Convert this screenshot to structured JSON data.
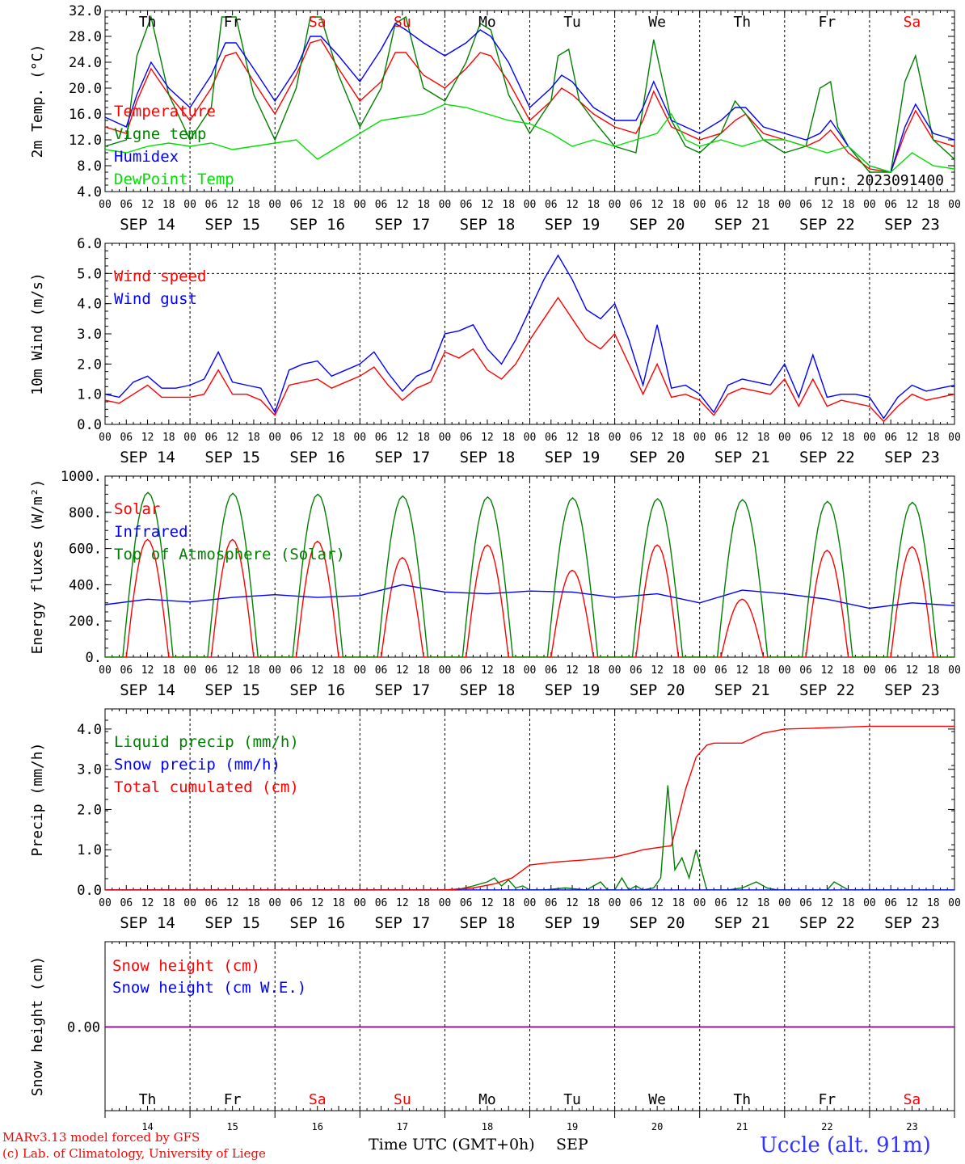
{
  "days": [
    "14",
    "15",
    "16",
    "17",
    "18",
    "19",
    "20",
    "21",
    "22",
    "23"
  ],
  "weekdays": [
    {
      "label": "Th",
      "color": "#000000"
    },
    {
      "label": "Fr",
      "color": "#000000"
    },
    {
      "label": "Sa",
      "color": "#ff0000"
    },
    {
      "label": "Su",
      "color": "#ff0000"
    },
    {
      "label": "Mo",
      "color": "#000000"
    },
    {
      "label": "Tu",
      "color": "#000000"
    },
    {
      "label": "We",
      "color": "#000000"
    },
    {
      "label": "Th",
      "color": "#000000"
    },
    {
      "label": "Fr",
      "color": "#000000"
    },
    {
      "label": "Sa",
      "color": "#ff0000"
    }
  ],
  "hour_ticks": [
    "00",
    "06",
    "12",
    "18"
  ],
  "date_labels": [
    "SEP 14",
    "SEP 15",
    "SEP 16",
    "SEP 17",
    "SEP 18",
    "SEP 19",
    "SEP 20",
    "SEP 21",
    "SEP 22",
    "SEP 23"
  ],
  "footer": {
    "model": "MARv3.13 model forced by GFS",
    "lab": "(c) Lab. of Climatology, University of Liege",
    "xlabel": "Time UTC (GMT+0h)",
    "month": "SEP",
    "station": "Uccle (alt. 91m)"
  },
  "colors": {
    "red": "#ff0000",
    "green": "#008000",
    "blue": "#0000ff",
    "lime": "#00e000",
    "purple": "#800080",
    "station": "#3333ff"
  },
  "chart_data": [
    {
      "type": "line",
      "ylabel": "2m Temp. (°C)",
      "ylim": [
        4,
        32
      ],
      "yticks": [
        "4.0",
        "8.0",
        "12.0",
        "16.0",
        "20.0",
        "24.0",
        "28.0",
        "32.0"
      ],
      "weekday_labels_top": true,
      "annotation": "run: 2023091400",
      "x_unit": "hours since SEP 14 00 UTC",
      "series": [
        {
          "name": "Temperature",
          "color": "#ff0000",
          "x": [
            0,
            6,
            9,
            13,
            18,
            24,
            30,
            34,
            37,
            42,
            48,
            54,
            58,
            61,
            66,
            72,
            78,
            82,
            85,
            90,
            96,
            102,
            106,
            109,
            114,
            120,
            126,
            129,
            132,
            138,
            144,
            150,
            152,
            155,
            160,
            164,
            168,
            174,
            178,
            181,
            186,
            192,
            198,
            202,
            205,
            210,
            216,
            222,
            226,
            229,
            234,
            240
          ],
          "y": [
            14,
            13,
            18,
            23,
            19,
            15,
            20,
            25,
            25.5,
            21,
            16,
            22,
            27,
            27.5,
            23,
            18,
            21,
            25.5,
            25.5,
            22,
            20,
            23,
            25.5,
            25,
            21,
            15,
            18,
            20,
            19,
            16,
            14,
            13,
            15,
            19.5,
            14,
            13,
            12,
            13,
            15,
            16,
            13,
            12,
            11,
            12,
            13.5,
            10,
            7.5,
            7,
            13,
            16.5,
            12,
            11
          ]
        },
        {
          "name": "Vigne temp",
          "color": "#008000",
          "x": [
            0,
            6,
            9,
            13,
            18,
            24,
            30,
            33,
            37,
            42,
            48,
            54,
            58,
            61,
            66,
            72,
            78,
            82,
            85,
            90,
            96,
            102,
            106,
            109,
            114,
            120,
            126,
            128,
            131,
            134,
            138,
            144,
            150,
            152,
            155,
            160,
            164,
            168,
            174,
            178,
            181,
            186,
            192,
            198,
            202,
            205,
            207,
            210,
            216,
            222,
            226,
            229,
            234,
            240
          ],
          "y": [
            11,
            12,
            25,
            31,
            19,
            12,
            17,
            31,
            31,
            19,
            12,
            20,
            31,
            31,
            22,
            14,
            20,
            30,
            31,
            20,
            18,
            24,
            30,
            29,
            19,
            13,
            18,
            25,
            26,
            18,
            15,
            11,
            10,
            17,
            27.5,
            15,
            11,
            10,
            13,
            18,
            16,
            12,
            10,
            11,
            20,
            21,
            14,
            11,
            7,
            7,
            21,
            25,
            12,
            9
          ]
        },
        {
          "name": "Humidex",
          "color": "#0000ff",
          "x": [
            0,
            6,
            9,
            13,
            18,
            24,
            30,
            34,
            37,
            42,
            48,
            54,
            58,
            61,
            66,
            72,
            78,
            82,
            85,
            90,
            96,
            102,
            106,
            109,
            114,
            120,
            126,
            129,
            132,
            138,
            144,
            150,
            152,
            155,
            160,
            164,
            168,
            174,
            178,
            181,
            186,
            192,
            198,
            202,
            205,
            210,
            216,
            222,
            226,
            229,
            234,
            240
          ],
          "y": [
            15.5,
            14,
            19,
            24,
            20,
            17,
            22,
            27,
            27,
            23,
            18,
            23,
            28,
            28,
            25,
            21,
            26,
            30,
            29,
            27,
            25,
            27,
            29,
            28,
            24,
            17,
            20,
            22,
            21,
            17,
            15,
            15,
            17,
            21,
            15,
            14,
            13,
            15,
            17,
            17,
            14,
            13,
            12,
            13,
            15,
            11,
            8,
            7,
            14,
            17.5,
            13,
            12
          ]
        },
        {
          "name": "DewPoint Temp",
          "color": "#00e000",
          "x": [
            0,
            6,
            12,
            18,
            24,
            30,
            36,
            42,
            48,
            54,
            60,
            66,
            72,
            78,
            84,
            90,
            96,
            102,
            108,
            114,
            120,
            126,
            132,
            138,
            144,
            150,
            156,
            160,
            164,
            168,
            174,
            180,
            186,
            192,
            198,
            204,
            210,
            216,
            222,
            228,
            234,
            240
          ],
          "y": [
            10.5,
            10,
            11,
            11.5,
            11,
            11.5,
            10.5,
            11,
            11.5,
            12,
            9,
            11,
            13,
            15,
            15.5,
            16,
            17.5,
            17,
            16,
            15,
            14.5,
            13,
            11,
            12,
            11,
            12,
            13,
            16,
            12,
            11,
            12,
            11,
            12,
            12,
            11,
            10,
            11,
            8,
            7,
            10,
            8,
            7.5
          ]
        }
      ]
    },
    {
      "type": "line",
      "ylabel": "10m Wind (m/s)",
      "ylim": [
        0,
        6
      ],
      "yticks": [
        "0.0",
        "1.0",
        "2.0",
        "3.0",
        "4.0",
        "5.0",
        "6.0"
      ],
      "reference_line": 5.0,
      "x_unit": "hours since SEP 14 00 UTC",
      "series": [
        {
          "name": "Wind speed",
          "color": "#ff0000",
          "x": [
            0,
            4,
            8,
            12,
            16,
            20,
            24,
            28,
            32,
            36,
            40,
            44,
            48,
            52,
            56,
            60,
            64,
            68,
            72,
            76,
            80,
            84,
            88,
            92,
            96,
            100,
            104,
            108,
            112,
            116,
            120,
            124,
            128,
            132,
            136,
            140,
            144,
            148,
            152,
            156,
            160,
            164,
            168,
            172,
            176,
            180,
            184,
            188,
            192,
            196,
            200,
            204,
            208,
            212,
            216,
            220,
            224,
            228,
            232,
            236,
            240
          ],
          "y": [
            0.8,
            0.7,
            1.0,
            1.3,
            0.9,
            0.9,
            0.9,
            1.0,
            1.8,
            1.0,
            1.0,
            0.8,
            0.3,
            1.3,
            1.4,
            1.5,
            1.2,
            1.4,
            1.6,
            1.9,
            1.3,
            0.8,
            1.2,
            1.4,
            2.4,
            2.2,
            2.5,
            1.8,
            1.5,
            2.0,
            2.8,
            3.5,
            4.2,
            3.5,
            2.8,
            2.5,
            3.0,
            2.0,
            1.0,
            2.0,
            0.9,
            1.0,
            0.8,
            0.3,
            1.0,
            1.2,
            1.1,
            1.0,
            1.5,
            0.6,
            1.5,
            0.6,
            0.8,
            0.7,
            0.6,
            0.1,
            0.6,
            1.0,
            0.8,
            0.9,
            1.0
          ]
        },
        {
          "name": "Wind gust",
          "color": "#0000ff",
          "x": [
            0,
            4,
            8,
            12,
            16,
            20,
            24,
            28,
            32,
            36,
            40,
            44,
            48,
            52,
            56,
            60,
            64,
            68,
            72,
            76,
            80,
            84,
            88,
            92,
            96,
            100,
            104,
            108,
            112,
            116,
            120,
            124,
            128,
            132,
            136,
            140,
            144,
            148,
            152,
            156,
            160,
            164,
            168,
            172,
            176,
            180,
            184,
            188,
            192,
            196,
            200,
            204,
            208,
            212,
            216,
            220,
            224,
            228,
            232,
            236,
            240
          ],
          "y": [
            1.0,
            0.9,
            1.4,
            1.6,
            1.2,
            1.2,
            1.3,
            1.5,
            2.4,
            1.4,
            1.3,
            1.2,
            0.4,
            1.8,
            2.0,
            2.1,
            1.6,
            1.8,
            2.0,
            2.4,
            1.7,
            1.1,
            1.6,
            1.8,
            3.0,
            3.1,
            3.3,
            2.5,
            2.0,
            2.8,
            3.8,
            4.8,
            5.6,
            4.8,
            3.8,
            3.5,
            4.0,
            2.8,
            1.3,
            3.3,
            1.2,
            1.3,
            1.0,
            0.4,
            1.3,
            1.5,
            1.4,
            1.3,
            2.0,
            0.9,
            2.3,
            0.9,
            1.0,
            1.0,
            0.9,
            0.2,
            0.9,
            1.3,
            1.1,
            1.2,
            1.3
          ]
        }
      ]
    },
    {
      "type": "line",
      "ylabel": "Energy fluxes (W/m²)",
      "ylim": [
        0,
        1000
      ],
      "yticks": [
        "0.",
        "200.",
        "400.",
        "600.",
        "800.",
        "1000."
      ],
      "x_unit": "hours since SEP 14 00 UTC",
      "series": [
        {
          "name": "Solar",
          "color": "#ff0000",
          "peaks": [
            650,
            650,
            640,
            550,
            620,
            480,
            620,
            320,
            590,
            610
          ],
          "solar_noon_hour": 12
        },
        {
          "name": "Infrared",
          "color": "#0000ff",
          "x": [
            0,
            12,
            24,
            36,
            48,
            60,
            72,
            84,
            96,
            108,
            120,
            132,
            144,
            156,
            168,
            180,
            192,
            204,
            216,
            228,
            240
          ],
          "y": [
            290,
            320,
            305,
            330,
            345,
            330,
            340,
            400,
            360,
            350,
            365,
            360,
            330,
            350,
            300,
            370,
            350,
            320,
            270,
            300,
            285
          ]
        },
        {
          "name": "Top of Atmosphere (Solar)",
          "color": "#008000",
          "peaks": [
            910,
            905,
            900,
            890,
            885,
            880,
            875,
            870,
            860,
            855
          ],
          "sunrise_hour": 5,
          "sunset_hour": 19.2
        }
      ]
    },
    {
      "type": "line",
      "ylabel": "Precip (mm/h)",
      "ylim": [
        0,
        4.5
      ],
      "yticks": [
        "0.0",
        "1.0",
        "2.0",
        "3.0",
        "4.0"
      ],
      "x_unit": "hours since SEP 14 00 UTC",
      "series": [
        {
          "name": "Liquid precip (mm/h)",
          "color": "#008000",
          "x": [
            0,
            96,
            100,
            104,
            108,
            110,
            112,
            114,
            116,
            118,
            120,
            124,
            130,
            136,
            140,
            142,
            144,
            146,
            148,
            150,
            152,
            155,
            157,
            159,
            161,
            163,
            165,
            167,
            170,
            176,
            180,
            184,
            187,
            190,
            196,
            204,
            206,
            210,
            216,
            240
          ],
          "y": [
            0,
            0,
            0.02,
            0.1,
            0.2,
            0.3,
            0.1,
            0.25,
            0.05,
            0.1,
            0,
            0,
            0.05,
            0,
            0.2,
            0,
            0,
            0.3,
            0,
            0.1,
            0,
            0.05,
            0.3,
            2.6,
            0.5,
            0.8,
            0.3,
            1.0,
            0,
            0,
            0.05,
            0.2,
            0.05,
            0,
            0,
            0,
            0.2,
            0,
            0,
            0
          ]
        },
        {
          "name": "Snow precip (mm/h)",
          "color": "#0000ff",
          "x": [
            0,
            240
          ],
          "y": [
            0,
            0
          ]
        },
        {
          "name": "Total cumulated (cm)",
          "color": "#ff0000",
          "x": [
            0,
            96,
            104,
            110,
            115,
            120,
            128,
            136,
            144,
            150,
            152,
            156,
            160,
            164,
            167,
            170,
            172,
            176,
            180,
            186,
            192,
            200,
            216,
            240
          ],
          "y": [
            0,
            0,
            0.05,
            0.15,
            0.3,
            0.62,
            0.7,
            0.75,
            0.82,
            0.95,
            1.0,
            1.05,
            1.1,
            2.5,
            3.3,
            3.6,
            3.65,
            3.65,
            3.65,
            3.9,
            4.0,
            4.02,
            4.07,
            4.07
          ]
        }
      ]
    },
    {
      "type": "line",
      "ylabel": "Snow height (cm)",
      "yticks": [
        "0.00"
      ],
      "weekday_labels_bottom": true,
      "x_unit": "hours since SEP 14 00 UTC",
      "series": [
        {
          "name": "Snow height (cm)",
          "color": "#ff0000",
          "x": [
            0,
            240
          ],
          "y": [
            0,
            0
          ]
        },
        {
          "name": "Snow height (cm W.E.)",
          "color": "#0000ff",
          "x": [
            0,
            240
          ],
          "y": [
            0,
            0
          ]
        }
      ]
    }
  ]
}
